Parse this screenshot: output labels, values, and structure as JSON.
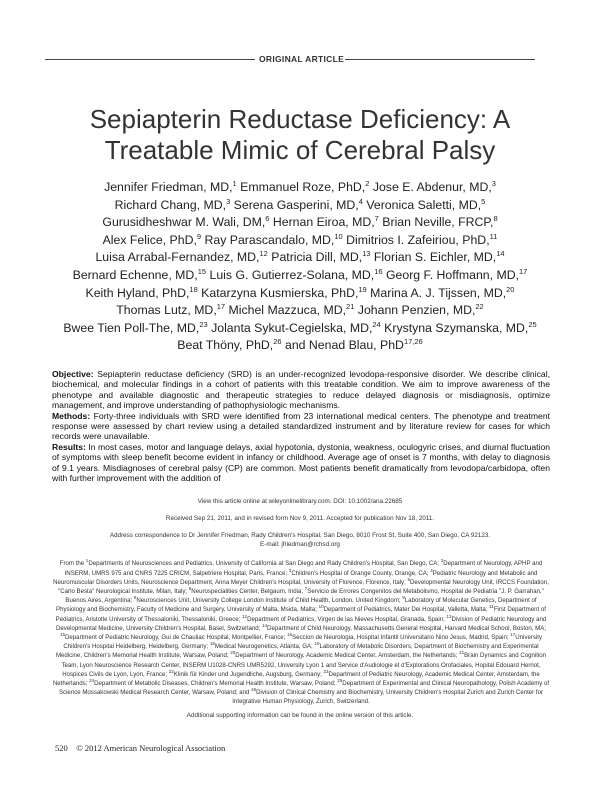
{
  "header": {
    "section_label": "ORIGINAL ARTICLE"
  },
  "title": [
    "Sepiapterin Reductase Deficiency: A",
    "Treatable Mimic of Cerebral Palsy"
  ],
  "authors": [
    [
      [
        "Jennifer Friedman, MD,",
        "1"
      ],
      [
        "Emmanuel Roze, PhD,",
        "2"
      ],
      [
        "Jose E. Abdenur, MD,",
        "3"
      ]
    ],
    [
      [
        "Richard Chang, MD,",
        "3"
      ],
      [
        "Serena Gasperini, MD,",
        "4"
      ],
      [
        "Veronica Saletti, MD,",
        "5"
      ]
    ],
    [
      [
        "Gurusidheshwar M. Wali, DM,",
        "6"
      ],
      [
        "Hernan Eiroa, MD,",
        "7"
      ],
      [
        "Brian Neville, FRCP,",
        "8"
      ]
    ],
    [
      [
        "Alex Felice, PhD,",
        "9"
      ],
      [
        "Ray Parascandalo, MD,",
        "10"
      ],
      [
        "Dimitrios I. Zafeiriou, PhD,",
        "11"
      ]
    ],
    [
      [
        "Luisa Arrabal-Fernandez, MD,",
        "12"
      ],
      [
        "Patricia Dill, MD,",
        "13"
      ],
      [
        "Florian S. Eichler, MD,",
        "14"
      ]
    ],
    [
      [
        "Bernard Echenne, MD,",
        "15"
      ],
      [
        "Luis G. Gutierrez-Solana, MD,",
        "16"
      ],
      [
        "Georg F. Hoffmann, MD,",
        "17"
      ]
    ],
    [
      [
        "Keith Hyland, PhD,",
        "18"
      ],
      [
        "Katarzyna Kusmierska, PhD,",
        "19"
      ],
      [
        "Marina A. J. Tijssen, MD,",
        "20"
      ]
    ],
    [
      [
        "Thomas Lutz, MD,",
        "17"
      ],
      [
        "Michel Mazzuca, MD,",
        "21"
      ],
      [
        "Johann Penzien, MD,",
        "22"
      ]
    ],
    [
      [
        "Bwee Tien Poll-The, MD,",
        "23"
      ],
      [
        "Jolanta Sykut-Cegielska, MD,",
        "24"
      ],
      [
        "Krystyna Szymanska, MD,",
        "25"
      ]
    ],
    [
      [
        "Beat Thöny, PhD,",
        "26"
      ],
      [
        "and Nenad Blau, PhD",
        "17,26"
      ]
    ]
  ],
  "abstract": [
    {
      "heading": "Objective:",
      "text": " Sepiapterin reductase deficiency (SRD) is an under-recognized levodopa-responsive disorder. We describe clinical, biochemical, and molecular findings in a cohort of patients with this treatable condition. We aim to improve awareness of the phenotype and available diagnostic and therapeutic strategies to reduce delayed diagnosis or misdiagnosis, optimize management, and improve understanding of pathophysiologic mechanisms."
    },
    {
      "heading": "Methods:",
      "text": " Forty-three individuals with SRD were identified from 23 international medical centers. The phenotype and treatment response were assessed by chart review using a detailed standardized instrument and by literature review for cases for which records were unavailable."
    },
    {
      "heading": "Results:",
      "text": " In most cases, motor and language delays, axial hypotonia, dystonia, weakness, oculogyric crises, and diurnal fluctuation of symptoms with sleep benefit become evident in infancy or childhood. Average age of onset is 7 months, with delay to diagnosis of 9.1 years. Misdiagnoses of cerebral palsy (CP) are common. Most patients benefit dramatically from levodopa/carbidopa, often with further improvement with the addition of"
    }
  ],
  "meta": {
    "online": "View this article online at wileyonlinelibrary.com. DOI: 10.1002/ana.22685",
    "received": "Received Sep 21, 2011, and in revised form Nov 9, 2011. Accepted for publication Nov 18, 2011.",
    "correspondence": "Address correspondence to Dr Jennifer Friedman, Rady Children's Hospital, San Diego, 8010 Frost St, Suite 400, San Diego, CA 92123.",
    "email": "E-mail: jfriedman@rchsd.org",
    "supporting": "Additional supporting information can be found in the online version of this article."
  },
  "affiliations_prefix": "From the ",
  "affiliations": [
    [
      "1",
      "Departments of Neurosciences and Pediatrics, University of California at San Diego and Rady Children's Hospital, San Diego, CA; "
    ],
    [
      "2",
      "Department of Neurology, APHP and INSERM, UMRS 975 and CNRS 7225 CRICM, Salpetriere Hospital, Paris, France; "
    ],
    [
      "3",
      "Children's Hospital of Orange County, Orange, CA; "
    ],
    [
      "4",
      "Pediatric Neurology and Metabolic and Neuromuscular Disorders Units, Neuroscience Department, Anna Meyer Children's Hospital, University of Florence, Florence, Italy; "
    ],
    [
      "5",
      "Developmental Neurology Unit, IRCCS Foundation, \"Carlo Besta\" Neurological Institute, Milan, Italy; "
    ],
    [
      "6",
      "Neurospecialities Center, Belgaum, India; "
    ],
    [
      "7",
      "Servicio de Errores Congenitos del Metabolismo, Hospital de Pediatria \"J. P. Garrahan,\" Buenos Aires, Argentina; "
    ],
    [
      "8",
      "Neurosciences Unit, University College London Institute of Child Health, London, United Kingdom; "
    ],
    [
      "9",
      "Laboratory of Molecular Genetics, Department of Physiology and Biochemistry, Faculty of Medicine and Surgery, University of Malta, Msida, Malta; "
    ],
    [
      "10",
      "Department of Pediatrics, Mater Dei Hospital, Valletta, Malta; "
    ],
    [
      "11",
      "First Department of Pediatrics, Aristotle University of Thessaloniki, Thessaloniki, Greece; "
    ],
    [
      "12",
      "Department of Pediatrics, Virgen de las Nieves Hospital, Granada, Spain; "
    ],
    [
      "13",
      "Division of Pediatric Neurology and Developmental Medicine, University Children's Hospital, Basel, Switzerland; "
    ],
    [
      "14",
      "Department of Child Neurology, Massachusetts General Hospital, Harvard Medical School, Boston, MA; "
    ],
    [
      "15",
      "Department of Pediatric Neurology, Gui de Chauliac Hospital, Montpellier, France; "
    ],
    [
      "16",
      "Seccion de Neurologia, Hospital Infantil Universitario Nino Jesus, Madrid, Spain; "
    ],
    [
      "17",
      "University Children's Hospital Heidelberg, Heidelberg, Germany; "
    ],
    [
      "18",
      "Medical Neurogenetics, Atlanta, GA; "
    ],
    [
      "19",
      "Laboratory of Metabolic Disorders, Department of Biochemistry and Experimental Medicine, Children's Memorial Health Institute, Warsaw, Poland; "
    ],
    [
      "20",
      "Department of Neurology, Academic Medical Center, Amsterdam, the Netherlands; "
    ],
    [
      "21",
      "Brain Dynamics and Cognition Team, Lyon Neuroscience Research Center, INSERM U1028-CNRS UMR5292, University Lyon 1 and Service d'Audiologie et d'Explorations Orofaciales, Hopital Edouard Herriot, Hospices Civils de Lyon, Lyon, France; "
    ],
    [
      "22",
      "Klinik für Kinder und Jugendliche, Augsburg, Germany; "
    ],
    [
      "23",
      "Department of Pediatric Neurology, Academic Medical Center, Amsterdam, the Netherlands; "
    ],
    [
      "24",
      "Department of Metabolic Diseases, Children's Memorial Health Institute, Warsaw, Poland; "
    ],
    [
      "25",
      "Department of Experimental and Clinical Neuropathology, Polish Academy of Science Mossakowski Medical Research Center, Warsaw, Poland; and "
    ],
    [
      "26",
      "Division of Clinical Chemistry and Biochemistry, University Children's Hospital Zurich and Zurich Center for Integrative Human Physiology, Zurich, Switzerland."
    ]
  ],
  "footer": {
    "page": "520",
    "copyright": "© 2012 American Neurological Association"
  }
}
